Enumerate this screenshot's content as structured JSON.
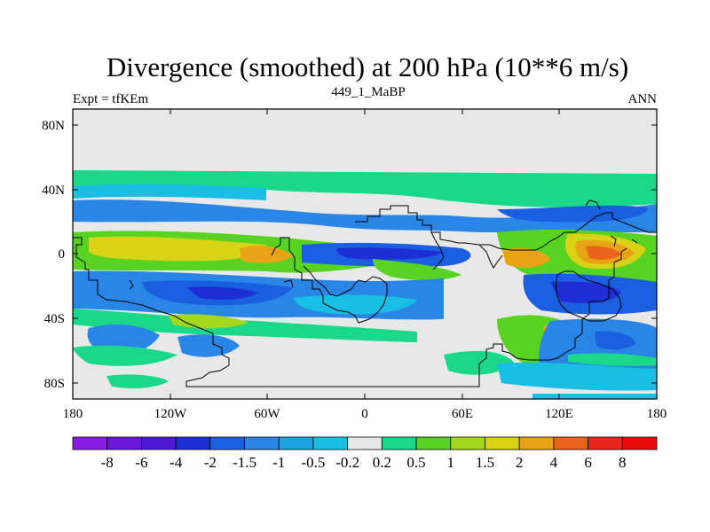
{
  "header": {
    "title": "Divergence (smoothed) at 200 hPa (10**6 m/s)",
    "left": "Expt = tfKEm",
    "center": "449_1_MaBP",
    "right": "ANN"
  },
  "axes": {
    "lat_ticks": [
      "80N",
      "40N",
      "0",
      "40S",
      "80S"
    ],
    "lon_ticks": [
      "180",
      "120W",
      "60W",
      "0",
      "60E",
      "120E",
      "180"
    ]
  },
  "colorbar": {
    "labels": [
      "-8",
      "-6",
      "-4",
      "-2",
      "-1.5",
      "-1",
      "-0.5",
      "-0.2",
      "0.2",
      "0.5",
      "1",
      "1.5",
      "2",
      "4",
      "6",
      "8"
    ],
    "colors": [
      "#8b1be3",
      "#6a17d9",
      "#4e18d4",
      "#1e2ed6",
      "#1a5fe0",
      "#2a86e6",
      "#1ca2e0",
      "#19bfe3",
      "#e8e8e8",
      "#1ad88a",
      "#58d322",
      "#a3d81c",
      "#d8d316",
      "#e8a316",
      "#e9641a",
      "#e8261c",
      "#e80a0a"
    ]
  }
}
